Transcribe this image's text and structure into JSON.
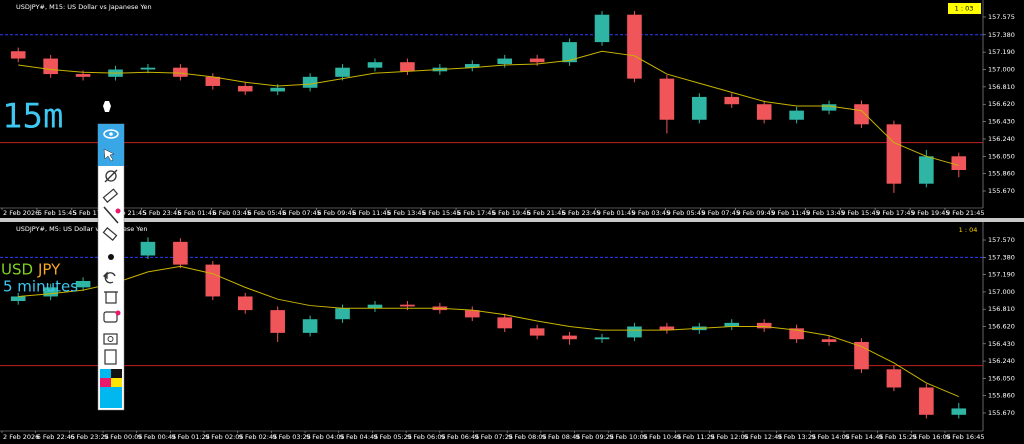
{
  "chart_data": [
    {
      "type": "candlestick",
      "title": "USDJPY#, M15:  US Dollar vs Japanese Yen",
      "timer": "1 : 03",
      "annotations": [
        {
          "text": "15m",
          "color": "#3cc8f0"
        }
      ],
      "open": [
        157.2,
        157.12,
        156.95,
        156.92,
        157.0,
        157.02,
        156.92,
        156.82,
        156.76,
        156.8,
        156.92,
        157.02,
        157.08,
        156.98,
        157.02,
        157.06,
        157.12,
        157.08,
        157.3,
        157.6,
        156.9,
        156.45,
        156.7,
        156.62,
        156.45,
        156.55,
        156.62,
        156.4,
        155.75,
        156.05
      ],
      "high": [
        157.24,
        157.16,
        156.99,
        157.04,
        157.06,
        157.06,
        156.96,
        156.86,
        156.84,
        156.96,
        157.06,
        157.12,
        157.12,
        157.06,
        157.1,
        157.16,
        157.16,
        157.34,
        157.64,
        157.64,
        156.94,
        156.74,
        156.74,
        156.66,
        156.59,
        156.66,
        156.66,
        156.44,
        156.12,
        156.09
      ],
      "low": [
        157.08,
        156.91,
        156.88,
        156.88,
        156.96,
        156.88,
        156.78,
        156.72,
        156.72,
        156.76,
        156.88,
        156.98,
        156.94,
        156.94,
        156.98,
        157.02,
        157.04,
        157.04,
        157.26,
        156.86,
        156.3,
        156.41,
        156.58,
        156.41,
        156.41,
        156.51,
        156.36,
        155.65,
        155.71,
        155.82
      ],
      "close": [
        157.12,
        156.95,
        156.92,
        157.0,
        157.02,
        156.92,
        156.82,
        156.76,
        156.8,
        156.92,
        157.02,
        157.08,
        156.98,
        157.02,
        157.06,
        157.12,
        157.08,
        157.3,
        157.6,
        156.9,
        156.45,
        156.7,
        156.62,
        156.45,
        156.55,
        156.62,
        156.4,
        155.75,
        156.05,
        155.9
      ],
      "ma": [
        157.05,
        157.0,
        156.97,
        156.96,
        156.97,
        156.96,
        156.92,
        156.86,
        156.82,
        156.84,
        156.9,
        156.96,
        156.98,
        157.0,
        157.02,
        157.05,
        157.06,
        157.1,
        157.2,
        157.15,
        156.95,
        156.85,
        156.75,
        156.65,
        156.6,
        156.6,
        156.55,
        156.2,
        156.05,
        155.95
      ],
      "up_color": "#2fb5a3",
      "down_color": "#f0555a",
      "ma_color": "#c8b400",
      "levels": [
        {
          "value": 157.38,
          "color": "#2a3cff",
          "style": "dashed"
        },
        {
          "value": 156.2,
          "color": "#c0201f",
          "style": "solid"
        }
      ],
      "ylim": [
        155.495,
        157.739
      ],
      "yticks": [
        {
          "value": 157.575,
          "label": "157.575"
        },
        {
          "value": 157.38,
          "label": "157.380"
        },
        {
          "value": 157.19,
          "label": "157.190"
        },
        {
          "value": 157.0,
          "label": "157.000"
        },
        {
          "value": 156.81,
          "label": "156.810"
        },
        {
          "value": 156.62,
          "label": "156.620"
        },
        {
          "value": 156.43,
          "label": "156.430"
        },
        {
          "value": 156.24,
          "label": "156.240"
        },
        {
          "value": 156.05,
          "label": "156.050"
        },
        {
          "value": 155.86,
          "label": "155.860"
        },
        {
          "value": 155.67,
          "label": "155.670"
        }
      ],
      "time_labels": [
        "2 Feb 2026",
        "5 Feb 15:45",
        "5 Feb 17:45",
        "5 Feb 21:45",
        "5 Feb 23:45",
        "6 Feb 01:45",
        "6 Feb 03:45",
        "6 Feb 05:45",
        "6 Feb 07:45",
        "6 Feb 09:45",
        "6 Feb 11:45",
        "6 Feb 13:45",
        "6 Feb 15:45",
        "6 Feb 17:45",
        "6 Feb 19:45",
        "6 Feb 21:45",
        "6 Feb 23:45",
        "9 Feb 01:45",
        "9 Feb 03:45",
        "9 Feb 05:45",
        "9 Feb 07:45",
        "9 Feb 09:45",
        "9 Feb 11:45",
        "9 Feb 13:45",
        "9 Feb 15:45",
        "9 Feb 17:45",
        "9 Feb 19:45",
        "9 Feb 21:45"
      ]
    },
    {
      "type": "candlestick",
      "title": "USDJPY#, M5:  US Dollar vs Japanese Yen",
      "timer": "1 : 04",
      "annotations": [
        {
          "text": "USD",
          "color": "#7ed321"
        },
        {
          "text": "JPY",
          "color": "#f5a623"
        },
        {
          "text": "5 minutes",
          "color": "#3cc8f0"
        }
      ],
      "open": [
        156.9,
        156.95,
        157.05,
        157.12,
        157.4,
        157.55,
        157.3,
        156.95,
        156.8,
        156.55,
        156.7,
        156.82,
        156.86,
        156.84,
        156.8,
        156.72,
        156.6,
        156.52,
        156.48,
        156.5,
        156.62,
        156.58,
        156.62,
        156.66,
        156.6,
        156.48,
        156.45,
        156.15,
        155.95,
        155.65
      ],
      "high": [
        156.99,
        157.09,
        157.16,
        157.44,
        157.6,
        157.59,
        157.34,
        156.99,
        156.84,
        156.74,
        156.86,
        156.9,
        156.9,
        156.88,
        156.84,
        156.76,
        156.64,
        156.56,
        156.54,
        156.66,
        156.66,
        156.66,
        156.7,
        156.7,
        156.64,
        156.52,
        156.49,
        156.19,
        155.99,
        155.78
      ],
      "low": [
        156.86,
        156.91,
        157.01,
        157.08,
        157.36,
        157.26,
        156.91,
        156.76,
        156.45,
        156.51,
        156.66,
        156.78,
        156.8,
        156.76,
        156.68,
        156.56,
        156.48,
        156.42,
        156.44,
        156.46,
        156.54,
        156.54,
        156.58,
        156.56,
        156.44,
        156.41,
        156.11,
        155.91,
        155.61,
        155.61
      ],
      "close": [
        156.95,
        157.05,
        157.12,
        157.4,
        157.55,
        157.3,
        156.95,
        156.8,
        156.55,
        156.7,
        156.82,
        156.86,
        156.84,
        156.8,
        156.72,
        156.6,
        156.52,
        156.48,
        156.5,
        156.62,
        156.58,
        156.62,
        156.66,
        156.6,
        156.48,
        156.45,
        156.15,
        155.95,
        155.65,
        155.72
      ],
      "ma": [
        156.95,
        156.98,
        157.02,
        157.1,
        157.22,
        157.28,
        157.2,
        157.05,
        156.92,
        156.85,
        156.82,
        156.82,
        156.82,
        156.82,
        156.8,
        156.75,
        156.68,
        156.62,
        156.58,
        156.58,
        156.58,
        156.6,
        156.62,
        156.62,
        156.58,
        156.52,
        156.4,
        156.22,
        156.0,
        155.85
      ],
      "up_color": "#2fb5a3",
      "down_color": "#f0555a",
      "ma_color": "#c8b400",
      "levels": [
        {
          "value": 157.38,
          "color": "#2a3cff",
          "style": "dashed"
        },
        {
          "value": 156.19,
          "color": "#c0201f",
          "style": "solid"
        }
      ],
      "ylim": [
        155.483,
        157.746
      ],
      "yticks": [
        {
          "value": 157.57,
          "label": "157.570"
        },
        {
          "value": 157.38,
          "label": "157.380"
        },
        {
          "value": 157.19,
          "label": "157.190"
        },
        {
          "value": 157.0,
          "label": "157.000"
        },
        {
          "value": 156.81,
          "label": "156.810"
        },
        {
          "value": 156.62,
          "label": "156.620"
        },
        {
          "value": 156.43,
          "label": "156.430"
        },
        {
          "value": 156.24,
          "label": "156.240"
        },
        {
          "value": 156.05,
          "label": "156.050"
        },
        {
          "value": 155.86,
          "label": "155.860"
        },
        {
          "value": 155.67,
          "label": "155.670"
        }
      ],
      "time_labels": [
        "2 Feb 2026",
        "6 Feb 22:45",
        "6 Feb 23:25",
        "9 Feb 00:05",
        "9 Feb 00:45",
        "9 Feb 01:25",
        "9 Feb 02:05",
        "9 Feb 02:45",
        "9 Feb 03:25",
        "9 Feb 04:05",
        "9 Feb 04:45",
        "9 Feb 05:25",
        "9 Feb 06:05",
        "9 Feb 06:45",
        "9 Feb 07:25",
        "9 Feb 08:05",
        "9 Feb 08:45",
        "9 Feb 09:25",
        "9 Feb 10:05",
        "9 Feb 10:45",
        "9 Feb 11:25",
        "9 Feb 12:05",
        "9 Feb 12:45",
        "9 Feb 13:25",
        "9 Feb 14:05",
        "9 Feb 14:45",
        "9 Feb 15:25",
        "9 Feb 16:05",
        "9 Feb 16:45"
      ]
    }
  ]
}
